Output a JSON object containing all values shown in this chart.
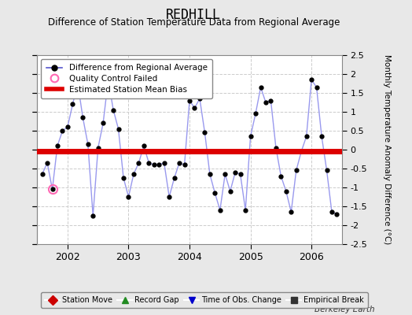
{
  "title": "REDHILL",
  "subtitle": "Difference of Station Temperature Data from Regional Average",
  "ylabel": "Monthly Temperature Anomaly Difference (°C)",
  "xlim": [
    2001.5,
    2006.5
  ],
  "ylim": [
    -2.5,
    2.5
  ],
  "bias_value": -0.05,
  "background_color": "#e8e8e8",
  "plot_bg_color": "#ffffff",
  "line_color": "#5555cc",
  "line_color_light": "#9999ee",
  "marker_color": "#000000",
  "bias_color": "#dd0000",
  "qc_failed_x": 2001.75,
  "qc_failed_y": -1.05,
  "data_x": [
    2001.583,
    2001.667,
    2001.75,
    2001.833,
    2001.917,
    2002.0,
    2002.083,
    2002.167,
    2002.25,
    2002.333,
    2002.417,
    2002.5,
    2002.583,
    2002.667,
    2002.75,
    2002.833,
    2002.917,
    2003.0,
    2003.083,
    2003.167,
    2003.25,
    2003.333,
    2003.417,
    2003.5,
    2003.583,
    2003.667,
    2003.75,
    2003.833,
    2003.917,
    2004.0,
    2004.083,
    2004.167,
    2004.25,
    2004.333,
    2004.417,
    2004.5,
    2004.583,
    2004.667,
    2004.75,
    2004.833,
    2004.917,
    2005.0,
    2005.083,
    2005.167,
    2005.25,
    2005.333,
    2005.417,
    2005.5,
    2005.583,
    2005.667,
    2005.75,
    2005.833,
    2005.917,
    2006.0,
    2006.083,
    2006.167,
    2006.25,
    2006.333,
    2006.417
  ],
  "data_y": [
    -0.65,
    -0.35,
    -1.05,
    0.1,
    0.5,
    0.6,
    1.2,
    1.75,
    0.85,
    0.15,
    -1.75,
    0.05,
    0.7,
    1.85,
    1.05,
    0.55,
    -0.75,
    -1.25,
    -0.65,
    -0.35,
    0.1,
    -0.35,
    -0.4,
    -0.4,
    -0.35,
    -1.25,
    -0.75,
    -0.35,
    -0.4,
    1.3,
    1.1,
    1.35,
    0.45,
    -0.65,
    -1.15,
    -1.6,
    -0.65,
    -1.1,
    -0.6,
    -0.65,
    -1.6,
    0.35,
    0.95,
    1.65,
    1.25,
    1.3,
    0.05,
    -0.7,
    -1.1,
    -1.65,
    -0.55,
    -0.05,
    0.35,
    1.85,
    1.65,
    0.35,
    -0.55,
    -1.65,
    -1.7
  ],
  "xticks": [
    2002,
    2003,
    2004,
    2005,
    2006
  ],
  "yticks": [
    -2.5,
    -2.0,
    -1.5,
    -1.0,
    -0.5,
    0.0,
    0.5,
    1.0,
    1.5,
    2.0,
    2.5
  ],
  "grid_color": "#cccccc",
  "berkeley_earth_text": "Berkeley Earth",
  "legend_line_label": "Difference from Regional Average",
  "legend_qc_label": "Quality Control Failed",
  "legend_bias_label": "Estimated Station Mean Bias",
  "bottom_legend": [
    {
      "label": "Station Move",
      "color": "#cc0000",
      "marker": "D"
    },
    {
      "label": "Record Gap",
      "color": "#228B22",
      "marker": "^"
    },
    {
      "label": "Time of Obs. Change",
      "color": "#0000cc",
      "marker": "v"
    },
    {
      "label": "Empirical Break",
      "color": "#333333",
      "marker": "s"
    }
  ]
}
